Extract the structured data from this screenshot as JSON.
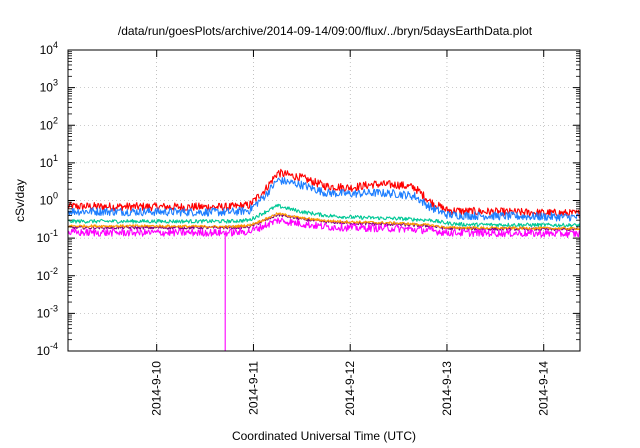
{
  "chart_data": {
    "type": "line",
    "title": "/data/run/goesPlots/archive/2014-09-14/09:00/flux/../bryn/5daysEarthData.plot",
    "xlabel": "Coordinated Universal Time (UTC)",
    "ylabel": "cSv/day",
    "xlim": [
      "2014-09-09T02:00",
      "2014-09-14T09:00"
    ],
    "ylim": [
      0.0001,
      10000
    ],
    "y_scale": "log",
    "grid": true,
    "legend": "none",
    "x_ticks": [
      "2014-9-10",
      "2014-9-11",
      "2014-9-12",
      "2014-9-13",
      "2014-9-14"
    ],
    "y_ticks": [
      {
        "value": 0.0001,
        "base": "10",
        "exp": "-4"
      },
      {
        "value": 0.001,
        "base": "10",
        "exp": "-3"
      },
      {
        "value": 0.01,
        "base": "10",
        "exp": "-2"
      },
      {
        "value": 0.1,
        "base": "10",
        "exp": "-1"
      },
      {
        "value": 1,
        "base": "10",
        "exp": "0"
      },
      {
        "value": 10,
        "base": "10",
        "exp": "1"
      },
      {
        "value": 100,
        "base": "10",
        "exp": "2"
      },
      {
        "value": 1000,
        "base": "10",
        "exp": "3"
      },
      {
        "value": 10000,
        "base": "10",
        "exp": "4"
      }
    ],
    "series": [
      {
        "color": "#ff0000",
        "noise": 0.22,
        "x": [
          "2014-09-09T02:00",
          "2014-09-10T00:00",
          "2014-09-10T18:00",
          "2014-09-10T23:00",
          "2014-09-11T03:00",
          "2014-09-11T06:00",
          "2014-09-11T12:00",
          "2014-09-11T18:00",
          "2014-09-12T00:00",
          "2014-09-12T06:00",
          "2014-09-12T12:00",
          "2014-09-12T16:00",
          "2014-09-12T20:00",
          "2014-09-13T00:00",
          "2014-09-13T04:00",
          "2014-09-14T09:00"
        ],
        "y": [
          0.7,
          0.68,
          0.67,
          0.75,
          2.0,
          5.5,
          4.0,
          2.4,
          2.2,
          2.7,
          2.6,
          2.2,
          0.9,
          0.55,
          0.52,
          0.45
        ]
      },
      {
        "color": "#1f7fff",
        "noise": 0.22,
        "x": [
          "2014-09-09T02:00",
          "2014-09-10T00:00",
          "2014-09-10T18:00",
          "2014-09-10T23:00",
          "2014-09-11T03:00",
          "2014-09-11T06:00",
          "2014-09-11T12:00",
          "2014-09-11T18:00",
          "2014-09-12T00:00",
          "2014-09-12T06:00",
          "2014-09-12T12:00",
          "2014-09-12T16:00",
          "2014-09-12T20:00",
          "2014-09-13T00:00",
          "2014-09-13T04:00",
          "2014-09-14T09:00"
        ],
        "y": [
          0.52,
          0.5,
          0.49,
          0.55,
          1.4,
          3.5,
          2.6,
          1.6,
          1.5,
          1.6,
          1.5,
          1.3,
          0.65,
          0.42,
          0.4,
          0.36
        ]
      },
      {
        "color": "#00c896",
        "noise": 0.1,
        "x": [
          "2014-09-09T02:00",
          "2014-09-10T00:00",
          "2014-09-10T18:00",
          "2014-09-10T23:00",
          "2014-09-11T03:00",
          "2014-09-11T06:00",
          "2014-09-11T12:00",
          "2014-09-11T18:00",
          "2014-09-12T00:00",
          "2014-09-12T12:00",
          "2014-09-12T20:00",
          "2014-09-13T00:00",
          "2014-09-13T04:00",
          "2014-09-14T09:00"
        ],
        "y": [
          0.28,
          0.28,
          0.28,
          0.3,
          0.5,
          0.72,
          0.5,
          0.4,
          0.36,
          0.33,
          0.3,
          0.25,
          0.23,
          0.22
        ]
      },
      {
        "color": "#800080",
        "noise": 0.08,
        "x": [
          "2014-09-09T02:00",
          "2014-09-10T00:00",
          "2014-09-10T18:00",
          "2014-09-10T23:00",
          "2014-09-11T03:00",
          "2014-09-11T06:00",
          "2014-09-11T12:00",
          "2014-09-11T18:00",
          "2014-09-12T00:00",
          "2014-09-12T12:00",
          "2014-09-12T20:00",
          "2014-09-13T00:00",
          "2014-09-14T09:00"
        ],
        "y": [
          0.19,
          0.19,
          0.19,
          0.2,
          0.3,
          0.42,
          0.32,
          0.27,
          0.25,
          0.23,
          0.21,
          0.18,
          0.17
        ]
      },
      {
        "color": "#ff9900",
        "noise": 0.07,
        "x": [
          "2014-09-09T02:00",
          "2014-09-10T00:00",
          "2014-09-10T18:00",
          "2014-09-10T23:00",
          "2014-09-11T03:00",
          "2014-09-11T06:00",
          "2014-09-11T12:00",
          "2014-09-11T18:00",
          "2014-09-12T00:00",
          "2014-09-12T12:00",
          "2014-09-12T20:00",
          "2014-09-13T00:00",
          "2014-09-14T09:00"
        ],
        "y": [
          0.21,
          0.21,
          0.2,
          0.22,
          0.32,
          0.45,
          0.34,
          0.29,
          0.27,
          0.25,
          0.22,
          0.19,
          0.18
        ]
      },
      {
        "color": "#ff00ff",
        "noise": 0.2,
        "x": [
          "2014-09-09T02:00",
          "2014-09-10T00:00",
          "2014-09-10T18:00",
          "2014-09-10T23:00",
          "2014-09-11T03:00",
          "2014-09-11T06:00",
          "2014-09-11T12:00",
          "2014-09-11T18:00",
          "2014-09-12T00:00",
          "2014-09-12T12:00",
          "2014-09-12T20:00",
          "2014-09-13T00:00",
          "2014-09-14T09:00"
        ],
        "y": [
          0.14,
          0.14,
          0.14,
          0.15,
          0.22,
          0.3,
          0.24,
          0.2,
          0.19,
          0.18,
          0.16,
          0.14,
          0.13
        ],
        "dropout": {
          "x": "2014-09-10T17:00",
          "y": 0.0001
        }
      }
    ]
  }
}
